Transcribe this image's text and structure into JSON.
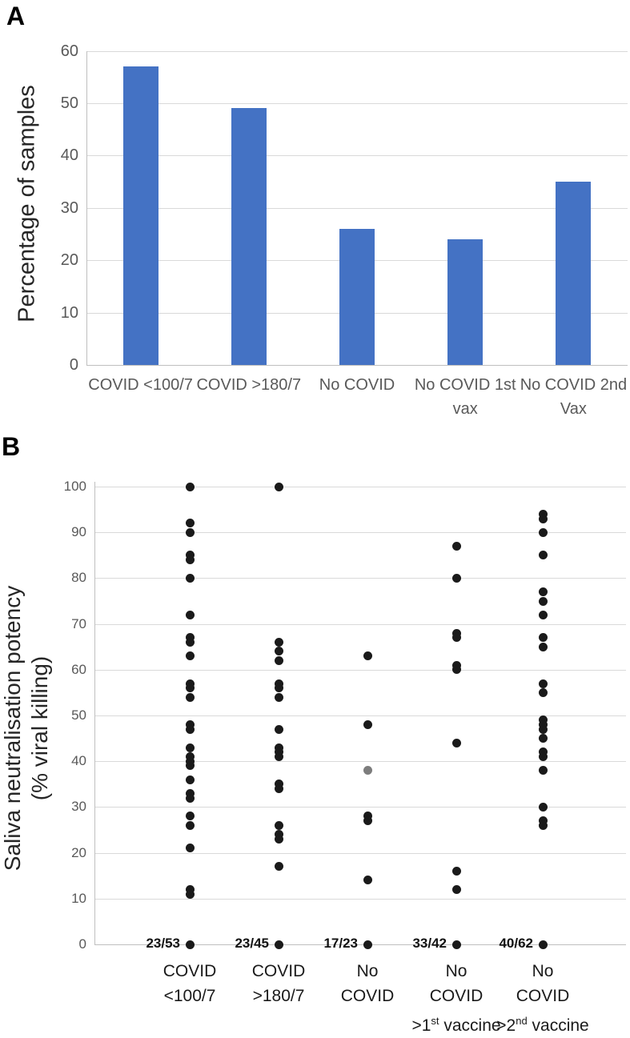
{
  "figure": {
    "panel_a_label": "A",
    "panel_b_label": "B"
  },
  "chart_data": [
    {
      "type": "bar",
      "panel": "A",
      "ylabel": "Percentage of samples",
      "ylim": [
        0,
        60
      ],
      "yticks": [
        60,
        50,
        40,
        30,
        20,
        10,
        0
      ],
      "grid": true,
      "bar_color": "#4472c4",
      "categories": [
        "COVID <100/7",
        "COVID >180/7",
        "No COVID",
        "No COVID 1st vax",
        "No COVID 2nd Vax"
      ],
      "category_lines": [
        [
          "COVID <100/7"
        ],
        [
          "COVID >180/7"
        ],
        [
          "No COVID"
        ],
        [
          "No COVID 1st",
          "vax"
        ],
        [
          "No COVID 2nd",
          "Vax"
        ]
      ],
      "values": [
        57,
        49,
        26,
        24,
        35
      ]
    },
    {
      "type": "scatter",
      "panel": "B",
      "ylabel_line1": "Saliva neutralisation potency",
      "ylabel_line2": "(% viral killing)",
      "ylim": [
        0,
        100
      ],
      "yticks": [
        100,
        90,
        80,
        70,
        60,
        50,
        40,
        30,
        20,
        10,
        0
      ],
      "grid": true,
      "dot_color": "#1a1a1a",
      "gray_dot_color": "#7d7d7d",
      "series": [
        {
          "category": "COVID <100/7",
          "count_label": "23/53",
          "points": [
            100,
            92,
            90,
            85,
            84,
            80,
            72,
            67,
            66,
            63,
            57,
            56,
            54,
            48,
            47,
            43,
            41,
            40,
            39,
            36,
            33,
            32,
            28,
            26,
            21,
            12,
            11,
            0
          ]
        },
        {
          "category": "COVID >180/7",
          "count_label": "23/45",
          "points": [
            100,
            66,
            64,
            62,
            57,
            56,
            54,
            47,
            43,
            42,
            41,
            35,
            34,
            26,
            24,
            23,
            17,
            0
          ]
        },
        {
          "category": "No COVID",
          "count_label": "17/23",
          "points": [
            63,
            48,
            28,
            27,
            14,
            0
          ],
          "gray_points": [
            38
          ]
        },
        {
          "category": "No COVID >1st vaccine",
          "count_label": "33/42",
          "points": [
            87,
            80,
            68,
            67,
            61,
            60,
            44,
            16,
            12,
            0
          ]
        },
        {
          "category": "No COVID >2nd vaccine",
          "count_label": "40/62",
          "points": [
            94,
            93,
            90,
            85,
            77,
            75,
            72,
            67,
            65,
            57,
            55,
            49,
            48,
            47,
            45,
            42,
            41,
            38,
            30,
            27,
            26,
            0
          ]
        }
      ],
      "category_labels": [
        {
          "lines": [
            "COVID",
            "<100/7"
          ]
        },
        {
          "lines": [
            "COVID",
            ">180/7"
          ]
        },
        {
          "lines": [
            "No",
            "COVID"
          ]
        },
        {
          "lines": [
            "No",
            "COVID"
          ],
          "extra": {
            "pre": ">1",
            "sup": "st",
            "post": " vaccine"
          }
        },
        {
          "lines": [
            "No",
            "COVID"
          ],
          "extra": {
            "pre": ">2",
            "sup": "nd",
            "post": " vaccine"
          }
        }
      ]
    }
  ]
}
